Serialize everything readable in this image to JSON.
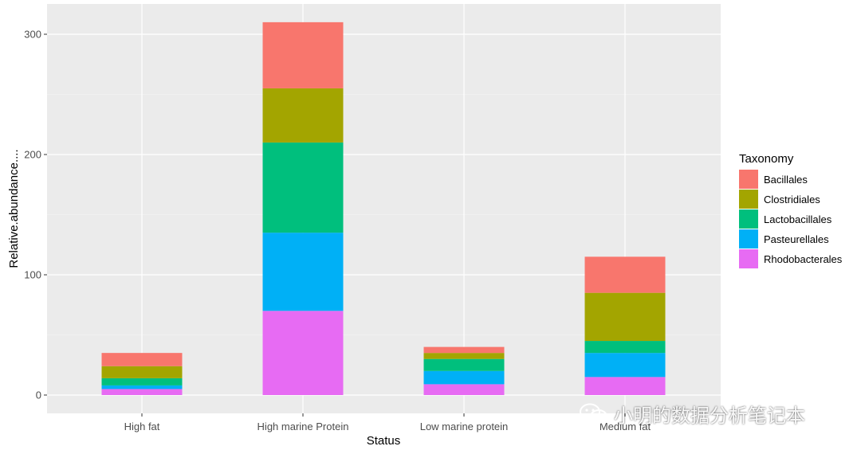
{
  "chart_data": {
    "type": "bar",
    "stacked": true,
    "title": "",
    "xlabel": "Status",
    "ylabel": "Relative.abundance....",
    "ylim": [
      0,
      320
    ],
    "yticks": [
      0,
      100,
      200,
      300
    ],
    "grid": true,
    "legend_position": "right",
    "legend_title": "Taxonomy",
    "categories": [
      "High fat",
      "High marine Protein",
      "Low marine protein",
      "Medium fat"
    ],
    "series": [
      {
        "name": "Rhodobacterales",
        "color": "#E76BF3",
        "values": [
          5,
          70,
          9,
          15
        ]
      },
      {
        "name": "Pasteurellales",
        "color": "#00B0F6",
        "values": [
          3,
          65,
          11,
          20
        ]
      },
      {
        "name": "Lactobacillales",
        "color": "#00BF7D",
        "values": [
          6,
          75,
          10,
          10
        ]
      },
      {
        "name": "Clostridiales",
        "color": "#A3A500",
        "values": [
          10,
          45,
          5,
          40
        ]
      },
      {
        "name": "Bacillales",
        "color": "#F8766D",
        "values": [
          11,
          55,
          5,
          30
        ]
      }
    ],
    "legend_order": [
      "Bacillales",
      "Clostridiales",
      "Lactobacillales",
      "Pasteurellales",
      "Rhodobacterales"
    ]
  },
  "watermark": {
    "text": "小明的数据分析笔记本",
    "icon": "wechat-icon"
  }
}
